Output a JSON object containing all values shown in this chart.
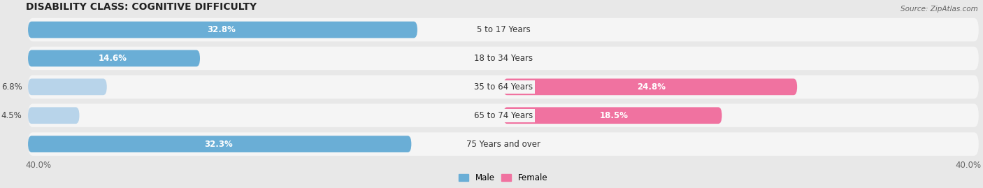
{
  "title": "DISABILITY CLASS: COGNITIVE DIFFICULTY",
  "source": "Source: ZipAtlas.com",
  "categories": [
    "5 to 17 Years",
    "18 to 34 Years",
    "35 to 64 Years",
    "65 to 74 Years",
    "75 Years and over"
  ],
  "male_values": [
    32.8,
    14.6,
    6.8,
    4.5,
    32.3
  ],
  "female_values": [
    0.0,
    0.0,
    24.8,
    18.5,
    0.0
  ],
  "male_color_dark": "#6aaed6",
  "male_color_light": "#b8d4ea",
  "female_color_dark": "#f072a0",
  "female_color_light": "#f5b8cc",
  "max_val": 40.0,
  "bg_color": "#e8e8e8",
  "row_bg_color": "#f5f5f5",
  "title_fontsize": 10,
  "label_fontsize": 8.5,
  "axis_label_fontsize": 8.5
}
